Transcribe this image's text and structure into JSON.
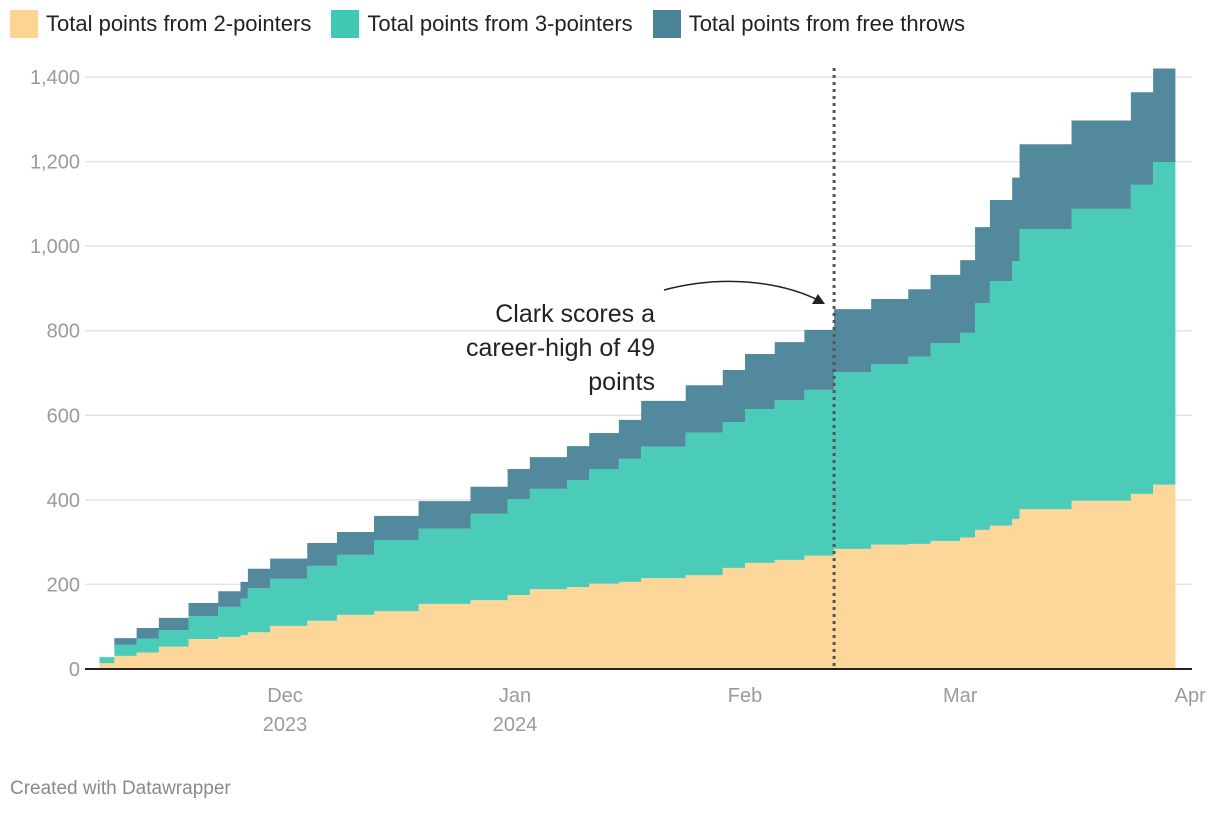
{
  "legend": [
    {
      "label": "Total points from 2-pointers",
      "color": "#fdd493"
    },
    {
      "label": "Total points from 3-pointers",
      "color": "#41c9b4"
    },
    {
      "label": "Total points from free throws",
      "color": "#4a8398"
    }
  ],
  "footer": "Created with Datawrapper",
  "chart_data": {
    "type": "area",
    "stacked": true,
    "step": true,
    "xlabel": "",
    "ylabel": "",
    "ylim": [
      0,
      1400
    ],
    "yticks": [
      0,
      200,
      400,
      600,
      800,
      1000,
      1200,
      1400
    ],
    "ytick_labels": [
      "0",
      "200",
      "400",
      "600",
      "800",
      "1,000",
      "1,200",
      "1,400"
    ],
    "xticks": [
      {
        "date": "2023-12-01",
        "label": "Dec",
        "sublabel": "2023"
      },
      {
        "date": "2024-01-01",
        "label": "Jan",
        "sublabel": "2024"
      },
      {
        "date": "2024-02-01",
        "label": "Feb",
        "sublabel": ""
      },
      {
        "date": "2024-03-01",
        "label": "Mar",
        "sublabel": ""
      },
      {
        "date": "2024-04-01",
        "label": "Apr",
        "sublabel": ""
      }
    ],
    "grid": true,
    "legend_position": "top",
    "x": [
      "2023-11-06",
      "2023-11-08",
      "2023-11-11",
      "2023-11-14",
      "2023-11-18",
      "2023-11-22",
      "2023-11-25",
      "2023-11-26",
      "2023-11-29",
      "2023-12-04",
      "2023-12-08",
      "2023-12-13",
      "2023-12-19",
      "2023-12-26",
      "2023-12-31",
      "2024-01-03",
      "2024-01-08",
      "2024-01-11",
      "2024-01-15",
      "2024-01-18",
      "2024-01-24",
      "2024-01-29",
      "2024-02-01",
      "2024-02-05",
      "2024-02-09",
      "2024-02-13",
      "2024-02-18",
      "2024-02-23",
      "2024-02-26",
      "2024-03-01",
      "2024-03-03",
      "2024-03-05",
      "2024-03-08",
      "2024-03-09",
      "2024-03-16",
      "2024-03-24",
      "2024-03-27"
    ],
    "x_end": "2024-03-30",
    "series": [
      {
        "name": "Total points from 2-pointers",
        "values": [
          14,
          31,
          39,
          53,
          71,
          76,
          80,
          87,
          102,
          114,
          128,
          137,
          154,
          163,
          175,
          189,
          194,
          202,
          206,
          215,
          222,
          239,
          251,
          258,
          268,
          284,
          294,
          296,
          303,
          311,
          329,
          339,
          355,
          378,
          398,
          414,
          436
        ]
      },
      {
        "name": "Total points from 3-pointers",
        "values": [
          14,
          26,
          33,
          39,
          54,
          71,
          86,
          104,
          111,
          130,
          142,
          168,
          178,
          204,
          227,
          237,
          253,
          271,
          291,
          311,
          337,
          345,
          364,
          378,
          392,
          418,
          427,
          443,
          468,
          484,
          536,
          578,
          610,
          662,
          690,
          731,
          763
        ]
      },
      {
        "name": "Total points from free throws",
        "values": [
          0,
          16,
          25,
          29,
          31,
          37,
          40,
          46,
          48,
          54,
          54,
          57,
          65,
          64,
          71,
          75,
          80,
          85,
          92,
          108,
          112,
          123,
          130,
          137,
          142,
          149,
          154,
          159,
          161,
          172,
          180,
          192,
          197,
          201,
          209,
          219,
          221
        ]
      }
    ],
    "annotation": {
      "text_lines": [
        "Clark scores a",
        "career-high of 49",
        "points"
      ],
      "date": "2024-02-13"
    }
  }
}
